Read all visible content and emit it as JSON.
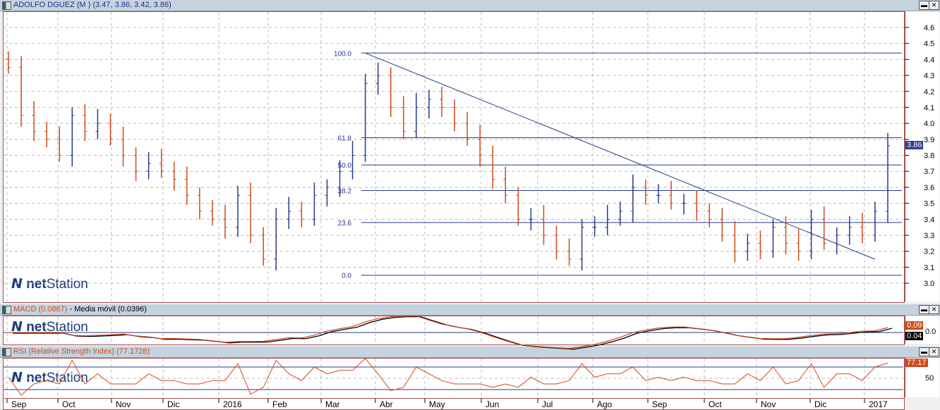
{
  "main": {
    "title": "ADOLFO DGUEZ (M ) (3.47, 3.86, 3.42, 3.86)",
    "last_price": "3.86",
    "logo_net": "net",
    "logo_station": "Station"
  },
  "macd": {
    "title_macd": "MACD (0.0867)",
    "sep": " - ",
    "title_ma": "Media móvil (0.0396)",
    "macd_tag": "0.09",
    "ma_tag": "0.04",
    "zero_label": "0.0"
  },
  "rsi": {
    "title": "RSI (Relative Strength Index) (77.1728)",
    "tag": "77.17",
    "label_50": "50"
  },
  "window_buttons": {
    "minimize": "▬",
    "close": "✕"
  },
  "colors": {
    "up": "#2a3a8c",
    "down": "#d04a1a",
    "grid": "#bbbbbb",
    "fib": "#2a3a8c"
  },
  "chart_data": {
    "type": "ohlc",
    "title": "ADOLFO DGUEZ (M )",
    "y_ticks": [
      "4.6",
      "4.5",
      "4.4",
      "4.3",
      "4.2",
      "4.1",
      "4.0",
      "3.9",
      "3.8",
      "3.7",
      "3.6",
      "3.5",
      "3.4",
      "3.3",
      "3.2",
      "3.1",
      "3.0"
    ],
    "ylim": [
      2.88,
      4.7
    ],
    "x_labels": [
      "Sep",
      "Oct",
      "Nov",
      "Dic",
      "2016",
      "Feb",
      "Mar",
      "Abr",
      "May",
      "Jun",
      "Jul",
      "Ago",
      "Sep",
      "Oct",
      "Nov",
      "Dic",
      "2017"
    ],
    "closes": [
      4.35,
      4.05,
      3.95,
      3.9,
      3.8,
      4.05,
      3.95,
      4.0,
      3.9,
      3.8,
      3.7,
      3.75,
      3.7,
      3.65,
      3.55,
      3.45,
      3.4,
      3.35,
      3.55,
      3.3,
      3.15,
      3.4,
      3.45,
      3.4,
      3.55,
      3.6,
      3.7,
      3.8,
      4.25,
      4.3,
      4.1,
      3.95,
      4.1,
      4.15,
      4.1,
      4.0,
      3.9,
      3.8,
      3.65,
      3.55,
      3.4,
      3.4,
      3.3,
      3.2,
      3.15,
      3.35,
      3.35,
      3.4,
      3.45,
      3.6,
      3.55,
      3.55,
      3.5,
      3.5,
      3.45,
      3.4,
      3.3,
      3.2,
      3.25,
      3.2,
      3.35,
      3.25,
      3.2,
      3.4,
      3.25,
      3.3,
      3.35,
      3.3,
      3.45,
      3.86
    ],
    "fib_levels": [
      {
        "label": "100.0",
        "price": 4.44
      },
      {
        "label": "61.8",
        "price": 3.91
      },
      {
        "label": "50.0",
        "price": 3.74
      },
      {
        "label": "38.2",
        "price": 3.58
      },
      {
        "label": "23.6",
        "price": 3.38
      },
      {
        "label": "0.0",
        "price": 3.05
      }
    ],
    "trendline": {
      "from": {
        "bar": 28,
        "price": 4.44
      },
      "to": {
        "bar": 68,
        "price": 3.15
      }
    }
  }
}
